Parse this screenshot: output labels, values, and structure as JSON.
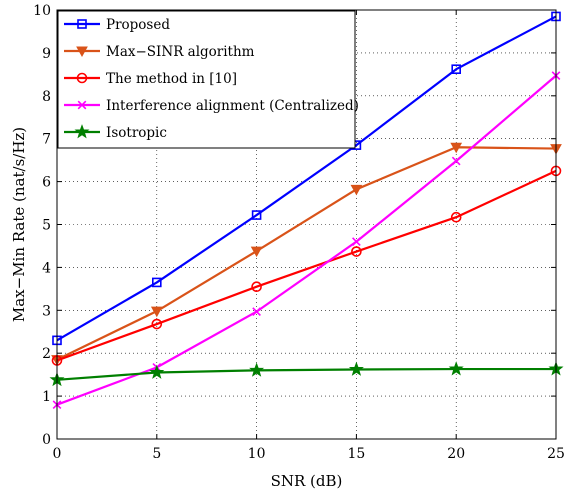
{
  "chart_data": {
    "type": "line",
    "xlabel": "SNR (dB)",
    "ylabel": "Max−Min Rate (nat/s/Hz)",
    "xlim": [
      0,
      25
    ],
    "ylim": [
      0,
      10
    ],
    "xticks": [
      "0",
      "5",
      "10",
      "15",
      "20",
      "25"
    ],
    "yticks": [
      "0",
      "1",
      "2",
      "3",
      "4",
      "5",
      "6",
      "7",
      "8",
      "9",
      "10"
    ],
    "grid": true,
    "grid_style": "dotted",
    "legend_position": "top-left",
    "x": [
      0,
      5,
      10,
      15,
      20,
      25
    ],
    "series": [
      {
        "name": "Proposed",
        "color": "#0000ff",
        "marker": "square",
        "values": [
          2.3,
          3.65,
          5.22,
          6.85,
          8.62,
          9.85
        ]
      },
      {
        "name": "Max−SINR algorithm",
        "color": "#d95319",
        "marker": "triangle-down",
        "values": [
          1.85,
          2.98,
          4.38,
          5.82,
          6.8,
          6.77
        ]
      },
      {
        "name": "The method in [10]",
        "color": "#ff0000",
        "marker": "circle",
        "values": [
          1.83,
          2.68,
          3.55,
          4.37,
          5.17,
          6.25
        ]
      },
      {
        "name": "Interference alignment (Centralized)",
        "color": "#ff00ff",
        "marker": "x",
        "values": [
          0.8,
          1.67,
          2.97,
          4.6,
          6.48,
          8.47
        ]
      },
      {
        "name": "Isotropic",
        "color": "#007f00",
        "marker": "star",
        "values": [
          1.38,
          1.55,
          1.6,
          1.62,
          1.63,
          1.63
        ]
      }
    ]
  }
}
